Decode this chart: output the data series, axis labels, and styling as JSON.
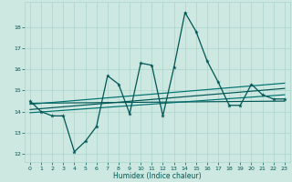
{
  "xlabel": "Humidex (Indice chaleur)",
  "x": [
    0,
    1,
    2,
    3,
    4,
    5,
    6,
    7,
    8,
    9,
    10,
    11,
    12,
    13,
    14,
    15,
    16,
    17,
    18,
    19,
    20,
    21,
    22,
    23
  ],
  "y_main": [
    14.5,
    14.0,
    13.8,
    13.8,
    12.1,
    12.6,
    13.3,
    15.7,
    15.3,
    13.9,
    16.3,
    16.2,
    13.8,
    16.1,
    18.7,
    17.8,
    16.4,
    15.4,
    14.3,
    14.3,
    15.3,
    14.8,
    14.6,
    14.6
  ],
  "bg_color": "#cce8e0",
  "grid_color": "#aad4cc",
  "line_color_dark": "#005555",
  "line_color_mid": "#007070",
  "ylim_min": 11.6,
  "ylim_max": 19.2,
  "yticks": [
    12,
    13,
    14,
    15,
    16,
    17,
    18
  ],
  "xticks": [
    0,
    1,
    2,
    3,
    4,
    5,
    6,
    7,
    8,
    9,
    10,
    11,
    12,
    13,
    14,
    15,
    16,
    17,
    18,
    19,
    20,
    21,
    22,
    23
  ],
  "trend1_start": 14.4,
  "trend1_end": 14.5,
  "trend2_start": 13.95,
  "trend2_end": 14.8,
  "trend3_start": 14.1,
  "trend3_end": 15.1,
  "trend4_start": 14.35,
  "trend4_end": 15.35
}
